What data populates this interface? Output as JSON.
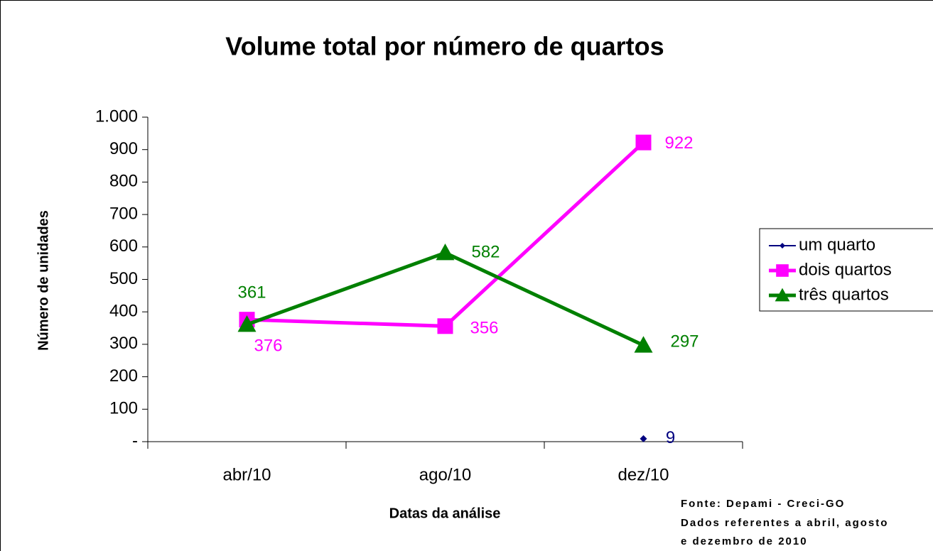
{
  "chart_data": {
    "type": "line",
    "title": "Volume total por número de quartos",
    "x_label": "Datas da análise",
    "y_label": "Número de unidades",
    "categories": [
      "abr/10",
      "ago/10",
      "dez/10"
    ],
    "series": [
      {
        "name": "um quarto",
        "color": "#000080",
        "marker": "diamond",
        "values": [
          null,
          null,
          9
        ]
      },
      {
        "name": "dois quartos",
        "color": "#ff00ff",
        "marker": "square",
        "values": [
          376,
          356,
          922
        ]
      },
      {
        "name": "três quartos",
        "color": "#008000",
        "marker": "triangle",
        "values": [
          361,
          582,
          297
        ]
      }
    ],
    "ylim": [
      0,
      1000
    ],
    "yticks": [
      {
        "value": 0,
        "label": "-"
      },
      100,
      200,
      300,
      400,
      500,
      600,
      700,
      800,
      900,
      {
        "value": 1000,
        "label": "1.000"
      }
    ],
    "legend": "right",
    "source": [
      "Fonte: Depami - Creci-GO",
      "Dados referentes a abril, agosto",
      "e dezembro de 2010"
    ]
  }
}
